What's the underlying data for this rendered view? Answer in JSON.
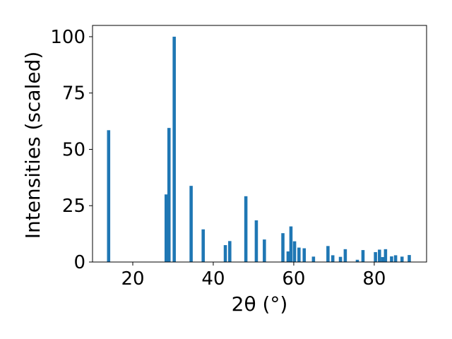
{
  "chart_data": {
    "type": "bar",
    "title": "",
    "xlabel": "2θ (°)",
    "ylabel": "Intensities (scaled)",
    "xlim": [
      10,
      93
    ],
    "ylim": [
      0,
      105
    ],
    "xticks": [
      20,
      40,
      60,
      80
    ],
    "yticks": [
      0,
      25,
      50,
      75,
      100
    ],
    "grid": false,
    "legend": "none",
    "bar_color": "#1f77b4",
    "bar_width_deg": 0.8,
    "series": [
      {
        "x": [
          14.0,
          28.3,
          29.0,
          30.3,
          34.5,
          37.5,
          43.0,
          44.1,
          48.1,
          50.7,
          52.7,
          57.3,
          58.6,
          59.3,
          60.2,
          61.3,
          62.6,
          64.9,
          68.5,
          69.7,
          71.6,
          72.8,
          75.8,
          77.2,
          80.3,
          81.3,
          82.1,
          82.8,
          84.3,
          85.3,
          86.9,
          88.7
        ],
        "values": [
          58.5,
          30.0,
          59.5,
          100.0,
          33.8,
          14.5,
          7.5,
          9.3,
          29.2,
          18.5,
          10.0,
          12.8,
          4.7,
          15.8,
          9.2,
          6.4,
          6.1,
          2.4,
          7.1,
          3.0,
          2.3,
          5.7,
          1.0,
          5.3,
          4.4,
          5.5,
          2.2,
          5.7,
          2.5,
          3.0,
          2.4,
          3.1
        ]
      }
    ]
  }
}
